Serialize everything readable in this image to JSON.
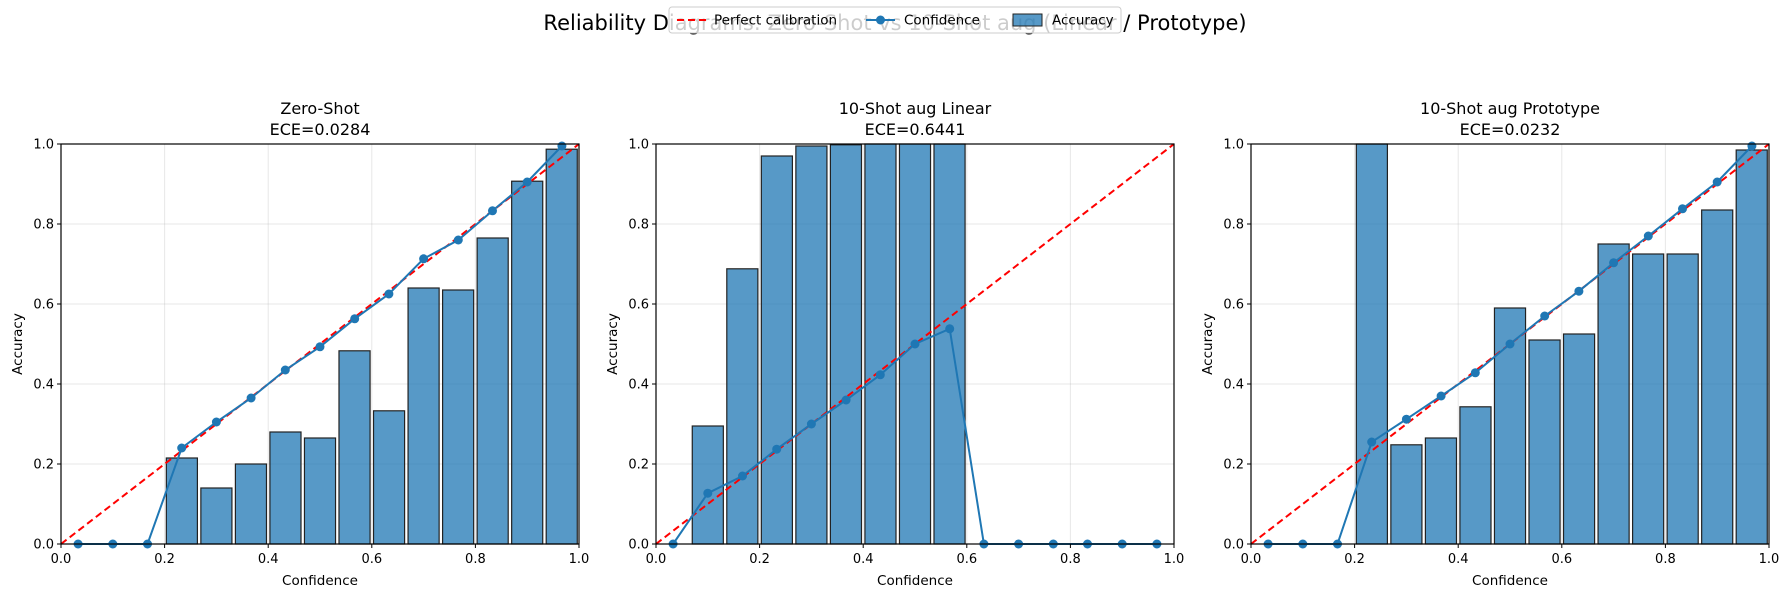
{
  "figure": {
    "suptitle": "Reliability Diagrams: Zero-Shot vs 10-Shot aug (Linear / Prototype)",
    "legend": {
      "items": [
        {
          "label": "Perfect calibration",
          "style": "red-dashed-line",
          "color": "#ff0000"
        },
        {
          "label": "Confidence",
          "style": "line-with-circle-marker",
          "color": "#1f77b4"
        },
        {
          "label": "Accuracy",
          "style": "filled-bar",
          "color": "#1f77b4"
        }
      ]
    }
  },
  "chart_data": [
    {
      "type": "bar",
      "title": "Zero-Shot",
      "subtitle": "ECE=0.0284",
      "xlabel": "Confidence",
      "ylabel": "Accuracy",
      "xlim": [
        0,
        1
      ],
      "ylim": [
        0,
        1
      ],
      "grid": true,
      "xticks": [
        "0.0",
        "0.2",
        "0.4",
        "0.6",
        "0.8",
        "1.0"
      ],
      "yticks": [
        "0.0",
        "0.2",
        "0.4",
        "0.6",
        "0.8",
        "1.0"
      ],
      "n_bins": 15,
      "bin_centers": [
        0.033,
        0.1,
        0.167,
        0.233,
        0.3,
        0.367,
        0.433,
        0.5,
        0.567,
        0.633,
        0.7,
        0.767,
        0.833,
        0.9,
        0.967
      ],
      "series": [
        {
          "name": "Accuracy",
          "kind": "bar",
          "values": [
            0,
            0,
            0,
            0.215,
            0.14,
            0.2,
            0.28,
            0.265,
            0.483,
            0.333,
            0.64,
            0.635,
            0.765,
            0.907,
            0.987
          ]
        },
        {
          "name": "Confidence",
          "kind": "line",
          "values": [
            0,
            0,
            0,
            0.24,
            0.305,
            0.365,
            0.435,
            0.493,
            0.563,
            0.625,
            0.713,
            0.76,
            0.833,
            0.905,
            0.995
          ]
        },
        {
          "name": "Perfect calibration",
          "kind": "line",
          "x": [
            0,
            1
          ],
          "values": [
            0,
            1
          ]
        }
      ]
    },
    {
      "type": "bar",
      "title": "10-Shot aug Linear",
      "subtitle": "ECE=0.6441",
      "xlabel": "Confidence",
      "ylabel": "Accuracy",
      "xlim": [
        0,
        1
      ],
      "ylim": [
        0,
        1
      ],
      "grid": true,
      "xticks": [
        "0.0",
        "0.2",
        "0.4",
        "0.6",
        "0.8",
        "1.0"
      ],
      "yticks": [
        "0.0",
        "0.2",
        "0.4",
        "0.6",
        "0.8",
        "1.0"
      ],
      "n_bins": 15,
      "bin_centers": [
        0.033,
        0.1,
        0.167,
        0.233,
        0.3,
        0.367,
        0.433,
        0.5,
        0.567,
        0.633,
        0.7,
        0.767,
        0.833,
        0.9,
        0.967
      ],
      "series": [
        {
          "name": "Accuracy",
          "kind": "bar",
          "values": [
            0,
            0.295,
            0.688,
            0.97,
            0.995,
            0.998,
            1.0,
            1.0,
            1.0,
            0,
            0,
            0,
            0,
            0,
            0
          ]
        },
        {
          "name": "Confidence",
          "kind": "line",
          "values": [
            0,
            0.127,
            0.17,
            0.237,
            0.3,
            0.36,
            0.423,
            0.5,
            0.538,
            0,
            0,
            0,
            0,
            0,
            0
          ]
        },
        {
          "name": "Perfect calibration",
          "kind": "line",
          "x": [
            0,
            1
          ],
          "values": [
            0,
            1
          ]
        }
      ]
    },
    {
      "type": "bar",
      "title": "10-Shot aug Prototype",
      "subtitle": "ECE=0.0232",
      "xlabel": "Confidence",
      "ylabel": "Accuracy",
      "xlim": [
        0,
        1
      ],
      "ylim": [
        0,
        1
      ],
      "grid": true,
      "xticks": [
        "0.0",
        "0.2",
        "0.4",
        "0.6",
        "0.8",
        "1.0"
      ],
      "yticks": [
        "0.0",
        "0.2",
        "0.4",
        "0.6",
        "0.8",
        "1.0"
      ],
      "n_bins": 15,
      "bin_centers": [
        0.033,
        0.1,
        0.167,
        0.233,
        0.3,
        0.367,
        0.433,
        0.5,
        0.567,
        0.633,
        0.7,
        0.767,
        0.833,
        0.9,
        0.967
      ],
      "series": [
        {
          "name": "Accuracy",
          "kind": "bar",
          "values": [
            0,
            0,
            0,
            1.0,
            0.248,
            0.265,
            0.343,
            0.59,
            0.51,
            0.525,
            0.75,
            0.725,
            0.725,
            0.835,
            0.985
          ]
        },
        {
          "name": "Confidence",
          "kind": "line",
          "values": [
            0,
            0,
            0,
            0.255,
            0.312,
            0.37,
            0.428,
            0.5,
            0.57,
            0.632,
            0.703,
            0.77,
            0.838,
            0.905,
            0.995
          ]
        },
        {
          "name": "Perfect calibration",
          "kind": "line",
          "x": [
            0,
            1
          ],
          "values": [
            0,
            1
          ]
        }
      ]
    }
  ]
}
